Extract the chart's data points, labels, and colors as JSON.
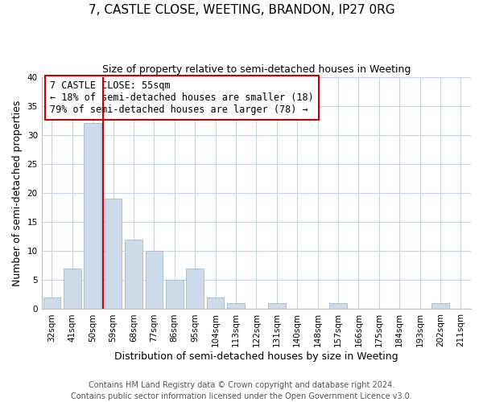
{
  "title": "7, CASTLE CLOSE, WEETING, BRANDON, IP27 0RG",
  "subtitle": "Size of property relative to semi-detached houses in Weeting",
  "xlabel": "Distribution of semi-detached houses by size in Weeting",
  "ylabel": "Number of semi-detached properties",
  "footer_line1": "Contains HM Land Registry data © Crown copyright and database right 2024.",
  "footer_line2": "Contains public sector information licensed under the Open Government Licence v3.0.",
  "bar_labels": [
    "32sqm",
    "41sqm",
    "50sqm",
    "59sqm",
    "68sqm",
    "77sqm",
    "86sqm",
    "95sqm",
    "104sqm",
    "113sqm",
    "122sqm",
    "131sqm",
    "140sqm",
    "148sqm",
    "157sqm",
    "166sqm",
    "175sqm",
    "184sqm",
    "193sqm",
    "202sqm",
    "211sqm"
  ],
  "bar_values": [
    2,
    7,
    32,
    19,
    12,
    10,
    5,
    7,
    2,
    1,
    0,
    1,
    0,
    0,
    1,
    0,
    0,
    0,
    0,
    1,
    0
  ],
  "bar_color": "#ccdaea",
  "bar_edge_color": "#aac0d8",
  "ylim": [
    0,
    40
  ],
  "yticks": [
    0,
    5,
    10,
    15,
    20,
    25,
    30,
    35,
    40
  ],
  "annotation_text_line1": "7 CASTLE CLOSE: 55sqm",
  "annotation_text_line2": "← 18% of semi-detached houses are smaller (18)",
  "annotation_text_line3": "79% of semi-detached houses are larger (78) →",
  "vline_color": "#cc0000",
  "box_edge_color": "#cc0000",
  "background_color": "#ffffff",
  "grid_color": "#c8d4e4",
  "title_fontsize": 11,
  "subtitle_fontsize": 9,
  "axis_label_fontsize": 9,
  "tick_fontsize": 7.5,
  "annotation_fontsize": 8.5,
  "footer_fontsize": 7
}
